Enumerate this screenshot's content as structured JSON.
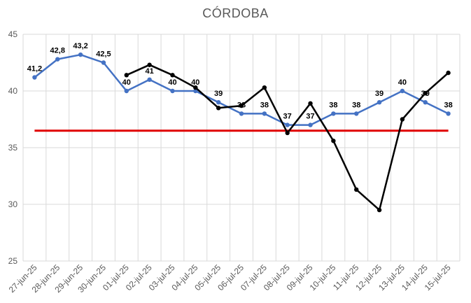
{
  "chart_data": {
    "type": "line",
    "title": "CÓRDOBA",
    "xlabel": "",
    "ylabel": "",
    "ylim": [
      25,
      45
    ],
    "ytick_step": 5,
    "grid": true,
    "categories": [
      "27-jun-25",
      "28-jun-25",
      "29-jun-25",
      "30-jun-25",
      "01-jul-25",
      "02-jul-25",
      "03-jul-25",
      "04-jul-25",
      "05-jul-25",
      "06-jul-25",
      "07-jul-25",
      "08-jul-25",
      "09-jul-25",
      "10-jul-25",
      "11-jul-25",
      "12-jul-25",
      "13-jul-25",
      "14-jul-25",
      "15-jul-25"
    ],
    "series": [
      {
        "color": "#4472C4",
        "values": [
          41.2,
          42.8,
          43.2,
          42.5,
          40,
          41,
          40,
          40,
          39,
          38,
          38,
          37,
          37,
          38,
          38,
          39,
          40,
          39,
          38
        ],
        "labels": [
          "41,2",
          "42,8",
          "43,2",
          "42,5",
          "40",
          "41",
          "40",
          "40",
          "39",
          "38",
          "38",
          "37",
          "37",
          "38",
          "38",
          "39",
          "40",
          "39",
          "38"
        ]
      },
      {
        "color": "#000000",
        "values": [
          null,
          null,
          null,
          null,
          41.4,
          42.3,
          41.4,
          40.3,
          38.5,
          38.7,
          40.3,
          36.3,
          38.9,
          35.6,
          31.3,
          29.5,
          37.5,
          39.8,
          41.6
        ]
      },
      {
        "color": "#E00000",
        "values": [
          36.5,
          36.5,
          36.5,
          36.5,
          36.5,
          36.5,
          36.5,
          36.5,
          36.5,
          36.5,
          36.5,
          36.5,
          36.5,
          36.5,
          36.5,
          36.5,
          36.5,
          36.5,
          36.5
        ]
      }
    ]
  }
}
